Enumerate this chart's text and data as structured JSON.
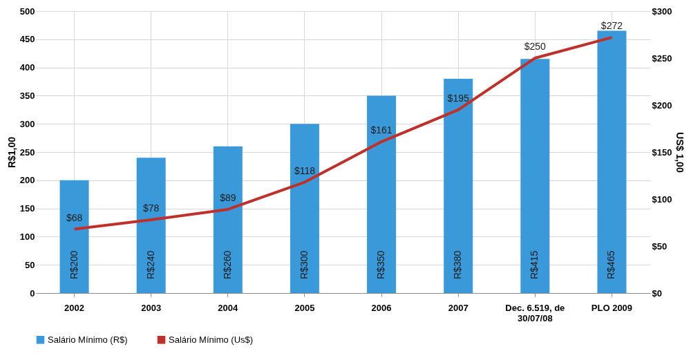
{
  "chart_data": {
    "type": "bar",
    "categories": [
      "2002",
      "2003",
      "2004",
      "2005",
      "2006",
      "2007",
      "Dec. 6.519, de 30/07/08",
      "PLO 2009"
    ],
    "ylabel": "R$1,00",
    "y2label": "US$ 1,00",
    "ylim": [
      0,
      500
    ],
    "yticks": [
      0,
      50,
      100,
      150,
      200,
      250,
      300,
      350,
      400,
      450,
      500
    ],
    "y2lim": [
      0,
      300
    ],
    "y2ticks": [
      {
        "value": 0,
        "label": "$0"
      },
      {
        "value": 50,
        "label": "$50"
      },
      {
        "value": 100,
        "label": "$100"
      },
      {
        "value": 150,
        "label": "$150"
      },
      {
        "value": 200,
        "label": "$200"
      },
      {
        "value": 250,
        "label": "$250"
      },
      {
        "value": 300,
        "label": "$300"
      }
    ],
    "grid": true,
    "legend": "bottom",
    "series": [
      {
        "name": "Salário Mínimo (R$)",
        "color": "#3a9ad9",
        "values": [
          200,
          240,
          260,
          300,
          350,
          380,
          415,
          465
        ],
        "value_labels": [
          "R$200",
          "R$240",
          "R$260",
          "R$300",
          "R$350",
          "R$380",
          "R$415",
          "R$465"
        ]
      },
      {
        "name": "Salário Mínimo (Us$)",
        "type": "line",
        "axis": "y2",
        "color": "#c0302a",
        "values": [
          68,
          78,
          89,
          118,
          161,
          195,
          250,
          272
        ],
        "value_labels": [
          "$68",
          "$78",
          "$89",
          "$118",
          "$161",
          "$195",
          "$250",
          "$272"
        ]
      }
    ]
  }
}
